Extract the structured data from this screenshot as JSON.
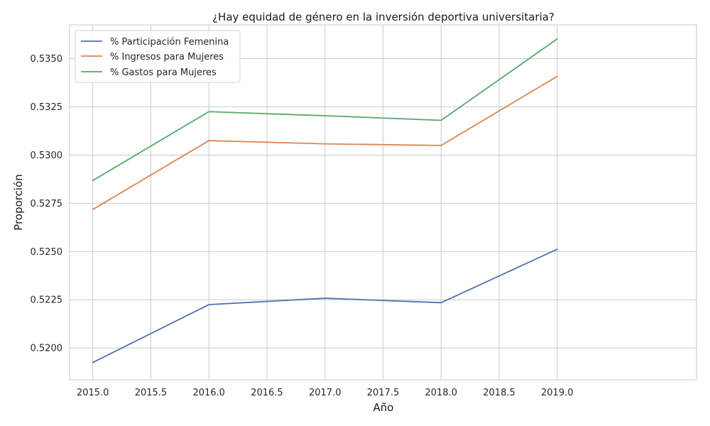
{
  "chart_data": {
    "type": "line",
    "title": "¿Hay equidad de género en la inversión deportiva universitaria?",
    "xlabel": "Año",
    "ylabel": "Proporción",
    "x": [
      2015,
      2016,
      2017,
      2018,
      2019
    ],
    "xlim": [
      2014.8,
      2020.2
    ],
    "ylim": [
      0.51835,
      0.53675
    ],
    "x_ticks": [
      2015.0,
      2015.5,
      2016.0,
      2016.5,
      2017.0,
      2017.5,
      2018.0,
      2018.5,
      2019.0
    ],
    "x_tick_labels": [
      "2015.0",
      "2015.5",
      "2016.0",
      "2016.5",
      "2017.0",
      "2017.5",
      "2018.0",
      "2018.5",
      "2019.0"
    ],
    "y_ticks": [
      0.52,
      0.5225,
      0.525,
      0.5275,
      0.53,
      0.5325,
      0.535
    ],
    "y_tick_labels": [
      "0.5200",
      "0.5225",
      "0.5250",
      "0.5275",
      "0.5300",
      "0.5325",
      "0.5350"
    ],
    "grid": true,
    "legend_position": "top-left",
    "series": [
      {
        "name": "% Participación Femenina",
        "color": "#4c72b0",
        "values": [
          0.51925,
          0.52225,
          0.52258,
          0.52235,
          0.52512
        ]
      },
      {
        "name": "% Ingresos para Mujeres",
        "color": "#dd8452",
        "values": [
          0.52718,
          0.53075,
          0.53058,
          0.5305,
          0.53408
        ]
      },
      {
        "name": "% Gastos para Mujeres",
        "color": "#55a868",
        "values": [
          0.52868,
          0.53225,
          0.53204,
          0.5318,
          0.53602
        ]
      }
    ]
  }
}
